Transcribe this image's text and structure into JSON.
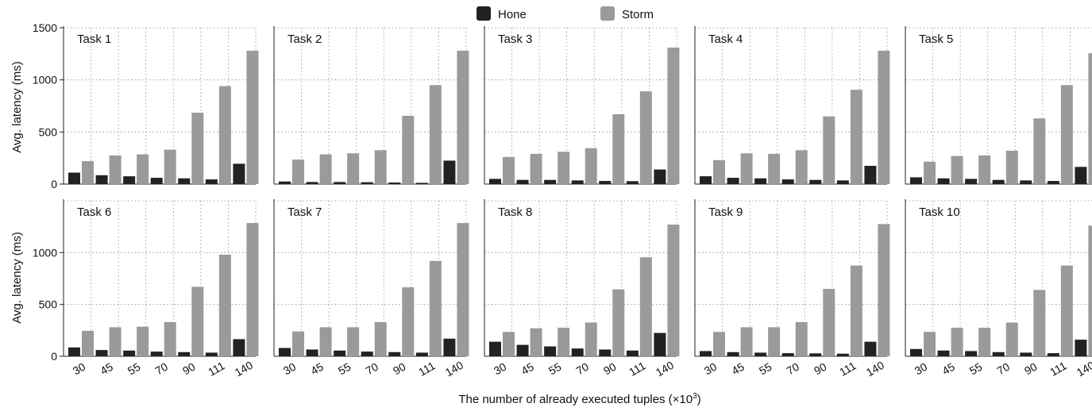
{
  "chart_data": {
    "type": "bar",
    "categories": [
      "30",
      "45",
      "55",
      "70",
      "90",
      "111",
      "140"
    ],
    "xlabel": "The number of already executed tuples (×10",
    "xlabel_sup": "3",
    "xlabel_close": ")",
    "ylabel": "Avg. latency (ms)",
    "ylim": [
      0,
      1500
    ],
    "yticks": [
      0,
      500,
      1000,
      1500
    ],
    "legend": [
      {
        "name": "Hone",
        "color": "#222222"
      },
      {
        "name": "Storm",
        "color": "#999a9c"
      }
    ],
    "legend_position": "top-center",
    "grid": true,
    "panels": [
      {
        "title": "Task 1",
        "series": [
          {
            "name": "Hone",
            "values": [
              110,
              85,
              75,
              60,
              55,
              45,
              195
            ]
          },
          {
            "name": "Storm",
            "values": [
              220,
              275,
              285,
              330,
              685,
              940,
              1280
            ]
          }
        ]
      },
      {
        "title": "Task 2",
        "series": [
          {
            "name": "Hone",
            "values": [
              25,
              20,
              20,
              18,
              15,
              12,
              225
            ]
          },
          {
            "name": "Storm",
            "values": [
              235,
              285,
              295,
              325,
              655,
              950,
              1280
            ]
          }
        ]
      },
      {
        "title": "Task 3",
        "series": [
          {
            "name": "Hone",
            "values": [
              50,
              40,
              40,
              35,
              30,
              28,
              140
            ]
          },
          {
            "name": "Storm",
            "values": [
              260,
              290,
              310,
              345,
              670,
              890,
              1310
            ]
          }
        ]
      },
      {
        "title": "Task 4",
        "series": [
          {
            "name": "Hone",
            "values": [
              75,
              60,
              55,
              45,
              40,
              35,
              175
            ]
          },
          {
            "name": "Storm",
            "values": [
              230,
              295,
              290,
              325,
              650,
              905,
              1280
            ]
          }
        ]
      },
      {
        "title": "Task 5",
        "series": [
          {
            "name": "Hone",
            "values": [
              65,
              55,
              50,
              40,
              35,
              30,
              165
            ]
          },
          {
            "name": "Storm",
            "values": [
              215,
              270,
              275,
              320,
              630,
              950,
              1255
            ]
          }
        ]
      },
      {
        "title": "Task 6",
        "series": [
          {
            "name": "Hone",
            "values": [
              85,
              60,
              55,
              45,
              40,
              35,
              165
            ]
          },
          {
            "name": "Storm",
            "values": [
              245,
              280,
              285,
              330,
              670,
              980,
              1285
            ]
          }
        ]
      },
      {
        "title": "Task 7",
        "series": [
          {
            "name": "Hone",
            "values": [
              80,
              65,
              55,
              45,
              40,
              35,
              170
            ]
          },
          {
            "name": "Storm",
            "values": [
              240,
              280,
              280,
              330,
              665,
              920,
              1285
            ]
          }
        ]
      },
      {
        "title": "Task 8",
        "series": [
          {
            "name": "Hone",
            "values": [
              140,
              110,
              95,
              75,
              65,
              55,
              225
            ]
          },
          {
            "name": "Storm",
            "values": [
              235,
              270,
              275,
              325,
              645,
              955,
              1270
            ]
          }
        ]
      },
      {
        "title": "Task 9",
        "series": [
          {
            "name": "Hone",
            "values": [
              50,
              40,
              35,
              30,
              28,
              25,
              140
            ]
          },
          {
            "name": "Storm",
            "values": [
              235,
              280,
              280,
              330,
              650,
              875,
              1275
            ]
          }
        ]
      },
      {
        "title": "Task 10",
        "series": [
          {
            "name": "Hone",
            "values": [
              70,
              55,
              50,
              40,
              35,
              30,
              160
            ]
          },
          {
            "name": "Storm",
            "values": [
              235,
              275,
              275,
              325,
              640,
              875,
              1260
            ]
          }
        ]
      }
    ]
  }
}
